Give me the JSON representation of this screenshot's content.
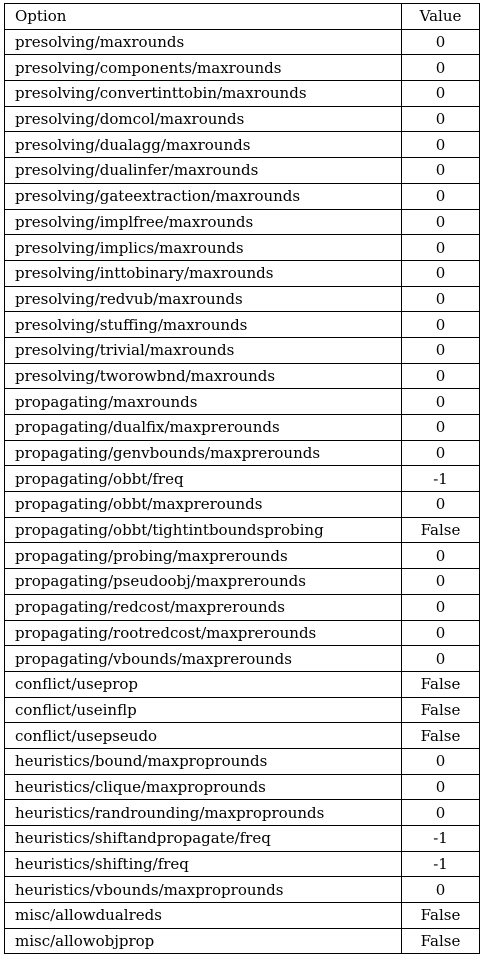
{
  "table": {
    "headers": {
      "option": "Option",
      "value": "Value"
    },
    "rows": [
      {
        "option": "presolving/maxrounds",
        "value": "0"
      },
      {
        "option": "presolving/components/maxrounds",
        "value": "0"
      },
      {
        "option": "presolving/convertinttobin/maxrounds",
        "value": "0"
      },
      {
        "option": "presolving/domcol/maxrounds",
        "value": "0"
      },
      {
        "option": "presolving/dualagg/maxrounds",
        "value": "0"
      },
      {
        "option": "presolving/dualinfer/maxrounds",
        "value": "0"
      },
      {
        "option": "presolving/gateextraction/maxrounds",
        "value": "0"
      },
      {
        "option": "presolving/implfree/maxrounds",
        "value": "0"
      },
      {
        "option": "presolving/implics/maxrounds",
        "value": "0"
      },
      {
        "option": "presolving/inttobinary/maxrounds",
        "value": "0"
      },
      {
        "option": "presolving/redvub/maxrounds",
        "value": "0"
      },
      {
        "option": "presolving/stuffing/maxrounds",
        "value": "0"
      },
      {
        "option": "presolving/trivial/maxrounds",
        "value": "0"
      },
      {
        "option": "presolving/tworowbnd/maxrounds",
        "value": "0"
      },
      {
        "option": "propagating/maxrounds",
        "value": "0"
      },
      {
        "option": "propagating/dualfix/maxprerounds",
        "value": "0"
      },
      {
        "option": "propagating/genvbounds/maxprerounds",
        "value": "0"
      },
      {
        "option": "propagating/obbt/freq",
        "value": "-1"
      },
      {
        "option": "propagating/obbt/maxprerounds",
        "value": "0"
      },
      {
        "option": "propagating/obbt/tightintboundsprobing",
        "value": "False"
      },
      {
        "option": "propagating/probing/maxprerounds",
        "value": "0"
      },
      {
        "option": "propagating/pseudoobj/maxprerounds",
        "value": "0"
      },
      {
        "option": "propagating/redcost/maxprerounds",
        "value": "0"
      },
      {
        "option": "propagating/rootredcost/maxprerounds",
        "value": "0"
      },
      {
        "option": "propagating/vbounds/maxprerounds",
        "value": "0"
      },
      {
        "option": "conflict/useprop",
        "value": "False"
      },
      {
        "option": "conflict/useinflp",
        "value": "False"
      },
      {
        "option": "conflict/usepseudo",
        "value": "False"
      },
      {
        "option": "heuristics/bound/maxproprounds",
        "value": "0"
      },
      {
        "option": "heuristics/clique/maxproprounds",
        "value": "0"
      },
      {
        "option": "heuristics/randrounding/maxproprounds",
        "value": "0"
      },
      {
        "option": "heuristics/shiftandpropagate/freq",
        "value": "-1"
      },
      {
        "option": "heuristics/shifting/freq",
        "value": "-1"
      },
      {
        "option": "heuristics/vbounds/maxproprounds",
        "value": "0"
      },
      {
        "option": "misc/allowdualreds",
        "value": "False"
      },
      {
        "option": "misc/allowobjprop",
        "value": "False"
      }
    ]
  }
}
